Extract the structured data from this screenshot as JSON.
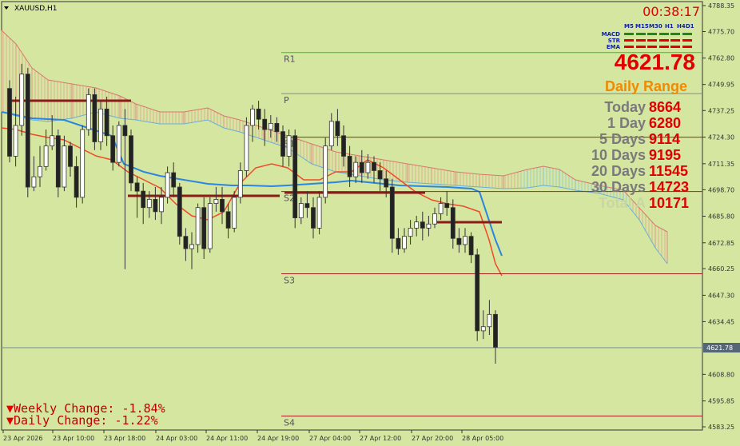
{
  "symbol": "XAUUSD,H1",
  "timer": "00:38:17",
  "current_price": "4621.78",
  "price_tag": "4621.78",
  "signals": {
    "timeframes": [
      "M5",
      "M15",
      "M30",
      "H1",
      "H4",
      "D1"
    ],
    "rows": [
      "MACD",
      "STR",
      "EMA"
    ],
    "colors": {
      "MACD": "#1a8a1a",
      "STR": "#e00000",
      "EMA": "#e00000"
    }
  },
  "daily_range": {
    "title": "Daily Range",
    "rows": [
      {
        "label": "Today",
        "value": "8664"
      },
      {
        "label": "1 Day",
        "value": "6280"
      },
      {
        "label": "5 Days",
        "value": "9114"
      },
      {
        "label": "10 Days",
        "value": "9195"
      },
      {
        "label": "20 Days",
        "value": "11545"
      },
      {
        "label": "30 Days",
        "value": "14723"
      },
      {
        "label": "Total A",
        "value": "10171"
      }
    ]
  },
  "changes": {
    "weekly": "Weekly Change: -1.84%",
    "daily": "Daily Change: -1.22%"
  },
  "chart_data": {
    "type": "candlestick",
    "title": "XAUUSD,H1",
    "y_ticks": [
      4788.35,
      4775.7,
      4762.8,
      4749.95,
      4737.25,
      4724.3,
      4711.35,
      4698.7,
      4685.8,
      4672.85,
      4660.25,
      4647.3,
      4634.45,
      4621.78,
      4608.8,
      4595.85,
      4583.25
    ],
    "y_tick_labels": [
      "4788.35",
      "4775.70",
      "4762.80",
      "4749.95",
      "4737.25",
      "4724.30",
      "4711.35",
      "4698.70",
      "4685.80",
      "4672.85",
      "4660.25",
      "4647.30",
      "4634.45",
      "4621.78",
      "4608.80",
      "4595.85",
      "4583.25"
    ],
    "x_labels": [
      "23 Apr 2026",
      "23 Apr 10:00",
      "23 Apr 18:00",
      "24 Apr 03:00",
      "24 Apr 11:00",
      "24 Apr 19:00",
      "27 Apr 04:00",
      "27 Apr 12:00",
      "27 Apr 20:00",
      "28 Apr 05:00"
    ],
    "levels": [
      {
        "name": "R1",
        "price": 4765.5,
        "color": "#22cc22"
      },
      {
        "name": "P",
        "price": 4745.5,
        "color": "#888888"
      },
      {
        "name": "S1",
        "price": 4724.3,
        "color": "#aa2020"
      },
      {
        "name": "S2",
        "price": 4697.8,
        "color": "#aa2020"
      },
      {
        "name": "S3",
        "price": 4657.8,
        "color": "#aa2020"
      },
      {
        "name": "S4",
        "price": 4588.5,
        "color": "#aa2020"
      }
    ],
    "current_price": 4621.78,
    "candles": [
      [
        4748,
        4715,
        4752,
        4712
      ],
      [
        4715,
        4730,
        4744,
        4710
      ],
      [
        4730,
        4755,
        4760,
        4725
      ],
      [
        4755,
        4700,
        4758,
        4695
      ],
      [
        4700,
        4705,
        4715,
        4698
      ],
      [
        4705,
        4710,
        4720,
        4700
      ],
      [
        4710,
        4720,
        4728,
        4708
      ],
      [
        4720,
        4725,
        4735,
        4718
      ],
      [
        4725,
        4700,
        4728,
        4695
      ],
      [
        4700,
        4720,
        4725,
        4698
      ],
      [
        4720,
        4710,
        4722,
        4705
      ],
      [
        4710,
        4695,
        4715,
        4690
      ],
      [
        4695,
        4728,
        4730,
        4692
      ],
      [
        4728,
        4745,
        4748,
        4725
      ],
      [
        4745,
        4722,
        4748,
        4718
      ],
      [
        4722,
        4738,
        4742,
        4718
      ],
      [
        4738,
        4725,
        4744,
        4720
      ],
      [
        4725,
        4712,
        4730,
        4708
      ],
      [
        4712,
        4730,
        4732,
        4710
      ],
      [
        4730,
        4725,
        4738,
        4660
      ],
      [
        4725,
        4702,
        4728,
        4698
      ],
      [
        4702,
        4698,
        4705,
        4685
      ],
      [
        4698,
        4690,
        4702,
        4682
      ],
      [
        4690,
        4694,
        4698,
        4685
      ],
      [
        4694,
        4688,
        4700,
        4684
      ],
      [
        4688,
        4695,
        4700,
        4682
      ],
      [
        4695,
        4707,
        4710,
        4692
      ],
      [
        4707,
        4700,
        4712,
        4695
      ],
      [
        4700,
        4676,
        4702,
        4672
      ],
      [
        4676,
        4670,
        4680,
        4664
      ],
      [
        4670,
        4672,
        4678,
        4660
      ],
      [
        4672,
        4690,
        4692,
        4668
      ],
      [
        4690,
        4670,
        4695,
        4665
      ],
      [
        4670,
        4692,
        4695,
        4668
      ],
      [
        4692,
        4694,
        4700,
        4688
      ],
      [
        4694,
        4688,
        4700,
        4682
      ],
      [
        4688,
        4680,
        4692,
        4675
      ],
      [
        4680,
        4695,
        4698,
        4678
      ],
      [
        4695,
        4708,
        4712,
        4692
      ],
      [
        4708,
        4730,
        4734,
        4705
      ],
      [
        4730,
        4738,
        4740,
        4722
      ],
      [
        4738,
        4733,
        4742,
        4728
      ],
      [
        4733,
        4728,
        4738,
        4720
      ],
      [
        4728,
        4731,
        4735,
        4724
      ],
      [
        4731,
        4727,
        4734,
        4722
      ],
      [
        4727,
        4715,
        4730,
        4710
      ],
      [
        4715,
        4725,
        4728,
        4710
      ],
      [
        4725,
        4685,
        4728,
        4680
      ],
      [
        4685,
        4692,
        4695,
        4682
      ],
      [
        4692,
        4690,
        4698,
        4685
      ],
      [
        4690,
        4680,
        4695,
        4675
      ],
      [
        4680,
        4695,
        4698,
        4677
      ],
      [
        4695,
        4720,
        4724,
        4692
      ],
      [
        4720,
        4732,
        4736,
        4718
      ],
      [
        4732,
        4725,
        4738,
        4720
      ],
      [
        4725,
        4715,
        4730,
        4710
      ],
      [
        4715,
        4705,
        4720,
        4700
      ],
      [
        4705,
        4712,
        4715,
        4702
      ],
      [
        4712,
        4707,
        4718,
        4702
      ],
      [
        4707,
        4712,
        4716,
        4704
      ],
      [
        4712,
        4708,
        4715,
        4702
      ],
      [
        4708,
        4704,
        4712,
        4698
      ],
      [
        4704,
        4700,
        4708,
        4695
      ],
      [
        4700,
        4675,
        4704,
        4668
      ],
      [
        4675,
        4670,
        4680,
        4667
      ],
      [
        4670,
        4676,
        4680,
        4668
      ],
      [
        4676,
        4680,
        4684,
        4672
      ],
      [
        4680,
        4683,
        4686,
        4676
      ],
      [
        4683,
        4680,
        4688,
        4674
      ],
      [
        4680,
        4682,
        4686,
        4676
      ],
      [
        4682,
        4687,
        4690,
        4680
      ],
      [
        4687,
        4692,
        4695,
        4684
      ],
      [
        4692,
        4690,
        4698,
        4686
      ],
      [
        4690,
        4675,
        4694,
        4670
      ],
      [
        4675,
        4672,
        4680,
        4668
      ],
      [
        4672,
        4676,
        4680,
        4668
      ],
      [
        4676,
        4667,
        4678,
        4663
      ],
      [
        4667,
        4630,
        4670,
        4625
      ],
      [
        4630,
        4632,
        4640,
        4626
      ],
      [
        4632,
        4638,
        4645,
        4628
      ],
      [
        4638,
        4622,
        4640,
        4614
      ]
    ]
  }
}
